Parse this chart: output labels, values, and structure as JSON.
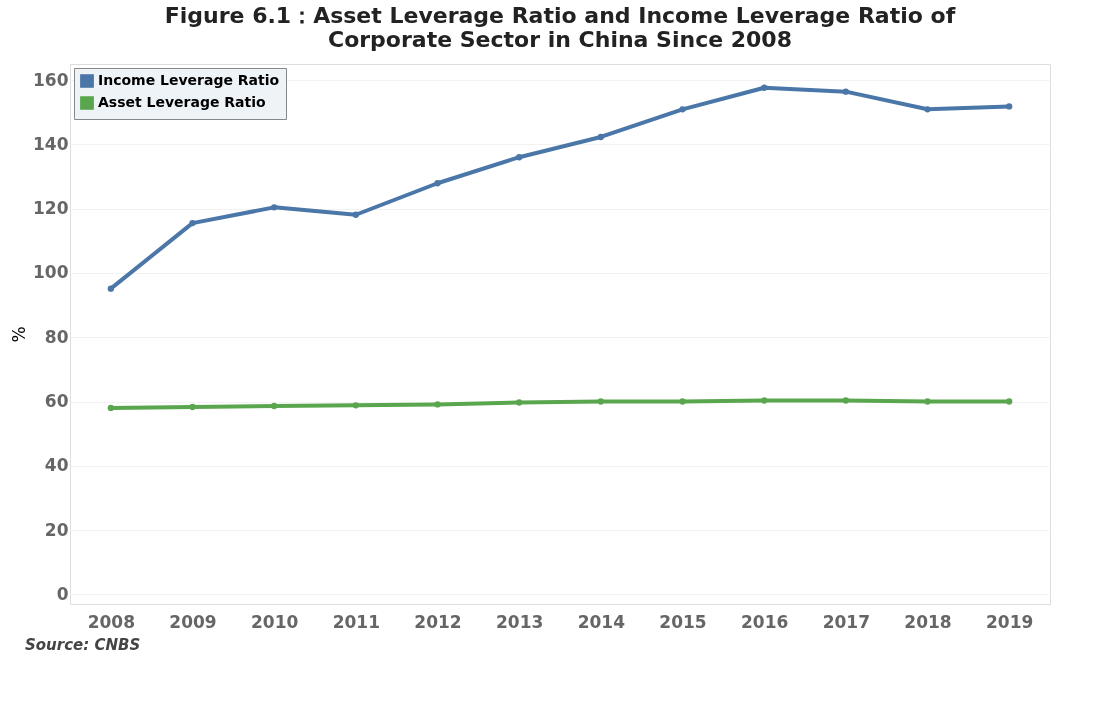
{
  "chart_data": {
    "type": "line",
    "title": "Figure 6.1：Asset Leverage Ratio and Income Leverage Ratio of\nCorporate Sector in China Since 2008",
    "ylabel": "%",
    "categories": [
      "2008",
      "2009",
      "2010",
      "2011",
      "2012",
      "2013",
      "2014",
      "2015",
      "2016",
      "2017",
      "2018",
      "2019"
    ],
    "series": [
      {
        "name": "Income Leverage Ratio",
        "color": "#4a76a8",
        "values": [
          95.1,
          115.5,
          120.4,
          118.1,
          127.9,
          136.0,
          142.3,
          150.9,
          157.6,
          156.4,
          150.9,
          151.8
        ]
      },
      {
        "name": "Asset Leverage Ratio",
        "color": "#5aa64e",
        "values": [
          58.0,
          58.3,
          58.6,
          58.8,
          59.1,
          59.7,
          60.0,
          60.0,
          60.3,
          60.3,
          60.0,
          60.0
        ]
      }
    ],
    "ylim": [
      -3,
      165
    ],
    "yticks": [
      0,
      20,
      40,
      60,
      80,
      100,
      120,
      140,
      160
    ],
    "grid": "y",
    "legend": "top left",
    "marker": "circle",
    "line_style": "solid",
    "annotations": [
      "Source: CNBS"
    ]
  }
}
